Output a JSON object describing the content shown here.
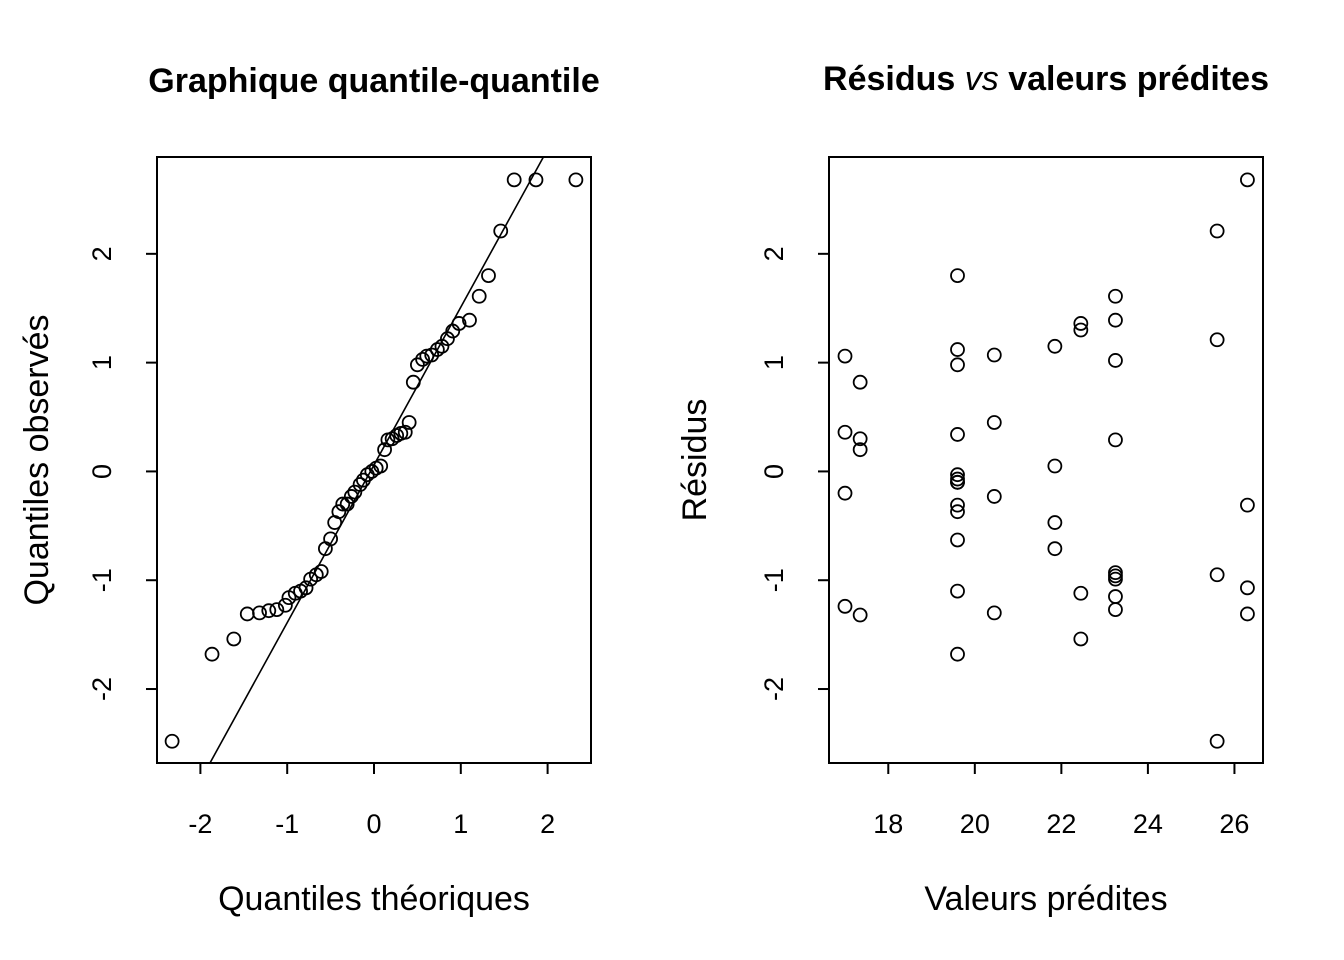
{
  "chart_data": [
    {
      "type": "scatter",
      "title": "Graphique quantile-quantile",
      "xlabel": "Quantiles théoriques",
      "ylabel": "Quantiles observés",
      "xlim": [
        -2.5,
        2.5
      ],
      "ylim": [
        -2.68,
        2.89
      ],
      "xticks": [
        -2,
        -1,
        0,
        1,
        2
      ],
      "xtick_labels": [
        "-2",
        "-1",
        "0",
        "1",
        "2"
      ],
      "yticks": [
        -2,
        -1,
        0,
        1,
        2
      ],
      "ytick_labels": [
        "-2",
        "-1",
        "0",
        "1",
        "2"
      ],
      "grid": false,
      "reference_line": {
        "slope": 1.45,
        "intercept": 0.06
      },
      "x": [
        -2.326,
        -1.866,
        -1.615,
        -1.46,
        -1.319,
        -1.212,
        -1.12,
        -1.021,
        -0.98,
        -0.907,
        -0.846,
        -0.783,
        -0.73,
        -0.665,
        -0.608,
        -0.56,
        -0.5,
        -0.453,
        -0.405,
        -0.36,
        -0.309,
        -0.261,
        -0.221,
        -0.16,
        -0.122,
        -0.077,
        -0.025,
        0.025,
        0.077,
        0.122,
        0.16,
        0.209,
        0.261,
        0.309,
        0.36,
        0.405,
        0.453,
        0.5,
        0.56,
        0.608,
        0.665,
        0.73,
        0.783,
        0.846,
        0.907,
        0.98,
        1.1,
        1.212,
        1.319,
        1.46,
        1.615,
        1.866,
        2.326
      ],
      "y": [
        -2.48,
        -1.68,
        -1.54,
        -1.31,
        -1.3,
        -1.28,
        -1.27,
        -1.23,
        -1.16,
        -1.12,
        -1.1,
        -1.07,
        -0.99,
        -0.95,
        -0.92,
        -0.71,
        -0.62,
        -0.47,
        -0.37,
        -0.3,
        -0.3,
        -0.23,
        -0.19,
        -0.12,
        -0.08,
        -0.03,
        0.0,
        0.03,
        0.05,
        0.2,
        0.29,
        0.3,
        0.33,
        0.35,
        0.36,
        0.45,
        0.82,
        0.98,
        1.03,
        1.06,
        1.07,
        1.12,
        1.15,
        1.22,
        1.29,
        1.36,
        1.39,
        1.61,
        1.8,
        2.21,
        2.68,
        2.68,
        2.68
      ]
    },
    {
      "type": "scatter",
      "title": "Résidus",
      "title_italic": "vs",
      "title_end": "valeurs prédites",
      "xlabel": "Valeurs prédites",
      "ylabel": "Résidus",
      "xlim": [
        16.63,
        26.66
      ],
      "ylim": [
        -2.68,
        2.89
      ],
      "xticks": [
        18,
        20,
        22,
        24,
        26
      ],
      "xtick_labels": [
        "18",
        "20",
        "22",
        "24",
        "26"
      ],
      "yticks": [
        -2,
        -1,
        0,
        1,
        2
      ],
      "ytick_labels": [
        "-2",
        "-1",
        "0",
        "1",
        "2"
      ],
      "grid": false,
      "x": [
        17.0,
        17.0,
        17.0,
        17.0,
        17.35,
        17.35,
        17.35,
        17.35,
        19.6,
        19.6,
        19.6,
        19.6,
        19.6,
        19.6,
        19.6,
        19.6,
        19.6,
        19.6,
        19.6,
        19.6,
        19.6,
        20.45,
        20.45,
        20.45,
        20.45,
        21.85,
        21.85,
        21.85,
        21.85,
        22.45,
        22.45,
        22.45,
        22.45,
        23.25,
        23.25,
        23.25,
        23.25,
        23.25,
        23.25,
        23.25,
        23.25,
        23.25,
        25.6,
        25.6,
        25.6,
        25.6,
        26.3,
        26.3,
        26.3,
        26.3
      ],
      "y": [
        1.06,
        0.36,
        -0.2,
        -1.24,
        0.82,
        0.3,
        0.2,
        -1.32,
        1.8,
        1.12,
        0.98,
        0.34,
        -0.03,
        -0.07,
        -0.1,
        -0.31,
        -0.37,
        -0.63,
        -1.1,
        -1.68,
        -0.1,
        1.07,
        0.45,
        -0.23,
        -1.3,
        1.15,
        0.05,
        -0.47,
        -0.71,
        1.36,
        1.3,
        -1.12,
        -1.54,
        1.61,
        1.39,
        1.02,
        0.29,
        -0.93,
        -0.99,
        -1.15,
        -1.27,
        -0.96,
        2.21,
        1.21,
        -0.95,
        -2.48,
        2.68,
        -0.31,
        -1.07,
        -1.31
      ]
    }
  ]
}
